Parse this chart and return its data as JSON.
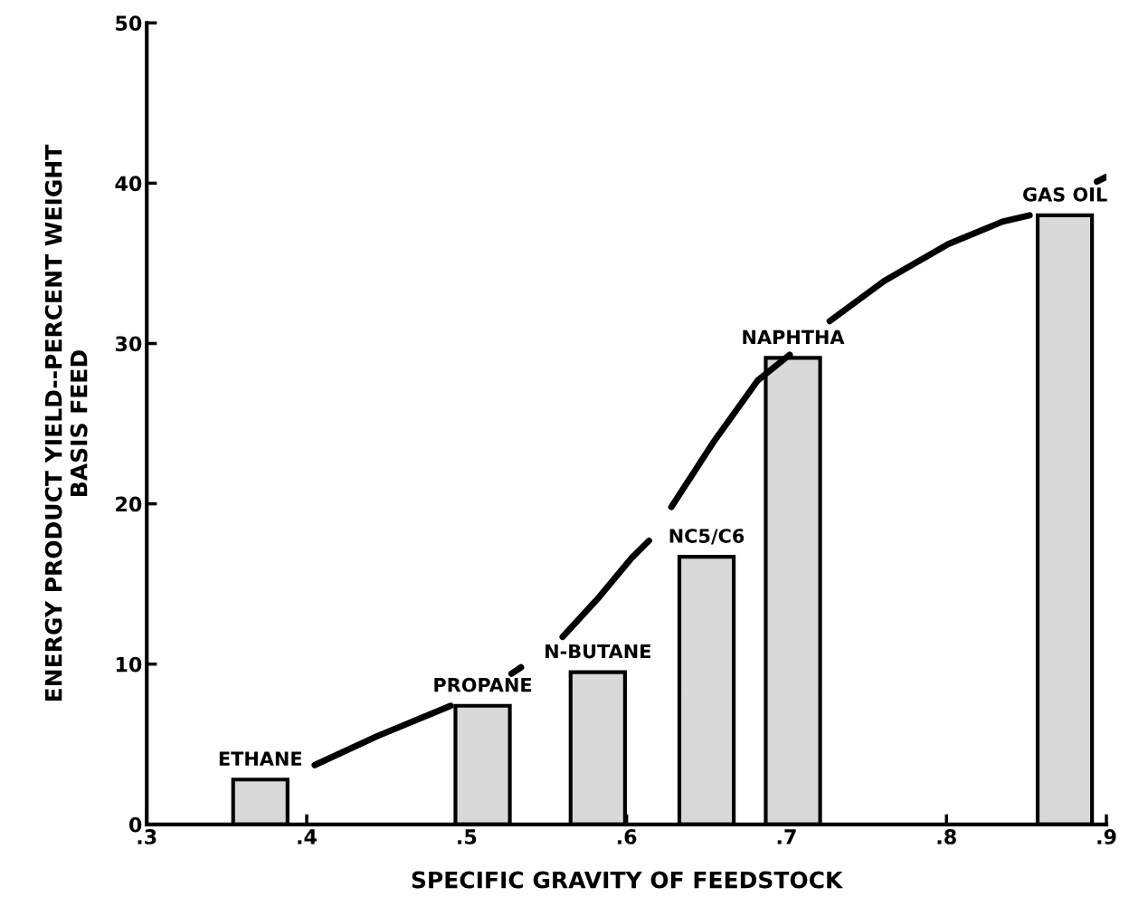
{
  "chart_data": {
    "type": "bar",
    "xlabel": "SPECIFIC GRAVITY OF FEEDSTOCK",
    "ylabel": "ENERGY PRODUCT YIELD--PERCENT WEIGHT\nBASIS FEED",
    "xlim": [
      0.3,
      0.9
    ],
    "ylim": [
      0,
      50
    ],
    "xticks": [
      {
        "value": 0.3,
        "label": ".3"
      },
      {
        "value": 0.4,
        "label": ".4"
      },
      {
        "value": 0.5,
        "label": ".5"
      },
      {
        "value": 0.6,
        "label": ".6"
      },
      {
        "value": 0.7,
        "label": ".7"
      },
      {
        "value": 0.8,
        "label": ".8"
      },
      {
        "value": 0.9,
        "label": ".9"
      }
    ],
    "yticks": [
      0,
      10,
      20,
      30,
      40,
      50
    ],
    "grid": false,
    "series": [
      {
        "color": "#d9d9d9",
        "x": [
          0.371,
          0.51,
          0.582,
          0.65,
          0.704,
          0.874
        ],
        "values": [
          2.8,
          7.4,
          9.5,
          16.7,
          29.1,
          38.0
        ]
      },
      {
        "type": "line",
        "color": "#000000",
        "x": [
          0.405,
          0.444,
          0.49,
          0.5,
          0.528,
          0.534,
          0.545,
          0.56,
          0.583,
          0.603,
          0.614,
          0.62,
          0.628,
          0.654,
          0.682,
          0.702,
          0.715,
          0.727,
          0.761,
          0.801,
          0.835,
          0.852,
          0.87,
          0.894,
          0.9
        ],
        "values": [
          3.7,
          5.5,
          7.4,
          null,
          9.4,
          9.8,
          null,
          11.7,
          14.2,
          16.6,
          17.7,
          null,
          19.8,
          23.8,
          27.7,
          29.3,
          null,
          31.4,
          33.9,
          36.2,
          37.6,
          38.0,
          null,
          40.1,
          40.4
        ]
      }
    ],
    "annotations": [
      {
        "text": "ETHANE",
        "x": 0.371,
        "y": 2.8
      },
      {
        "text": "PROPANE",
        "x": 0.51,
        "y": 7.4
      },
      {
        "text": "N-BUTANE",
        "x": 0.582,
        "y": 9.5
      },
      {
        "text": "NC5/C6",
        "x": 0.65,
        "y": 16.7
      },
      {
        "text": "NAPHTHA",
        "x": 0.704,
        "y": 29.1
      },
      {
        "text": "GAS OIL",
        "x": 0.874,
        "y": 38.0
      }
    ]
  }
}
